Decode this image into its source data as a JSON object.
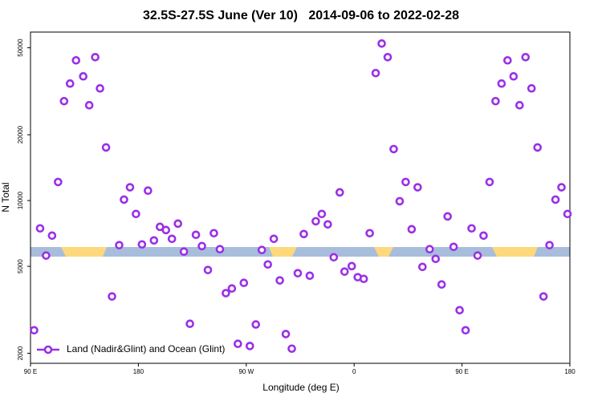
{
  "chart_data": {
    "type": "scatter",
    "title": "32.5S-27.5S June (Ver 10)   2014-09-06 to 2022-02-28",
    "x_label": "Longitude (deg E)",
    "y_label": "N Total",
    "xlim": [
      90,
      540
    ],
    "xticks": [
      {
        "value": 90,
        "label": "90 E"
      },
      180,
      {
        "value": 270,
        "label": "90 W"
      },
      {
        "value": 360,
        "label": "0"
      },
      {
        "value": 450,
        "label": "90 E"
      },
      {
        "value": 540,
        "label": "180"
      }
    ],
    "ylim": [
      1800,
      59000
    ],
    "yticks": [
      2000,
      5000,
      10000,
      20000,
      50000
    ],
    "y_log": true,
    "legend": "bottom-left",
    "x": [
      93,
      98,
      103,
      108,
      113,
      118,
      123,
      128,
      134,
      139,
      144,
      148,
      153,
      158,
      164,
      168,
      173,
      178,
      183,
      188,
      193,
      198,
      203,
      208,
      213,
      218,
      223,
      228,
      233,
      238,
      243,
      248,
      253,
      258,
      263,
      268,
      273,
      278,
      283,
      288,
      293,
      298,
      303,
      308,
      313,
      318,
      323,
      328,
      333,
      338,
      343,
      348,
      352,
      358,
      363,
      368,
      373,
      378,
      383,
      388,
      393,
      398,
      403,
      408,
      413,
      417,
      423,
      428,
      433,
      438,
      443,
      448,
      453,
      458,
      463,
      468,
      473,
      478,
      483,
      488,
      493,
      498,
      503,
      508,
      513,
      518,
      523,
      528,
      533,
      538
    ],
    "series": [
      {
        "name": "Land (Nadir&Glint) and Ocean (Glint)",
        "color": "#9b2fe6",
        "values": [
          2550,
          7460,
          5600,
          6910,
          12160,
          28500,
          34300,
          43800,
          37000,
          27300,
          45300,
          32600,
          17500,
          3640,
          6250,
          10100,
          11500,
          8680,
          6300,
          11100,
          6570,
          7580,
          7330,
          6680,
          7840,
          5840,
          2730,
          6970,
          6190,
          4810,
          7090,
          5990,
          3770,
          3960,
          2210,
          4200,
          2160,
          2710,
          5940,
          5100,
          6680,
          4310,
          2450,
          2100,
          4650,
          7030,
          4530,
          8040,
          8680,
          7780,
          5500,
          10900,
          4730,
          5010,
          4460,
          4380,
          7090,
          38300,
          52300,
          45300,
          17200,
          9930,
          12160,
          7390,
          11500,
          4970,
          5990,
          5410,
          4130,
          8460,
          6140,
          3150,
          2550,
          7460,
          5600,
          6910,
          12160,
          28500,
          34300,
          43800,
          37000,
          27300,
          45300,
          32600,
          17500,
          3640,
          6250,
          10100,
          11500,
          8680
        ]
      }
    ]
  }
}
